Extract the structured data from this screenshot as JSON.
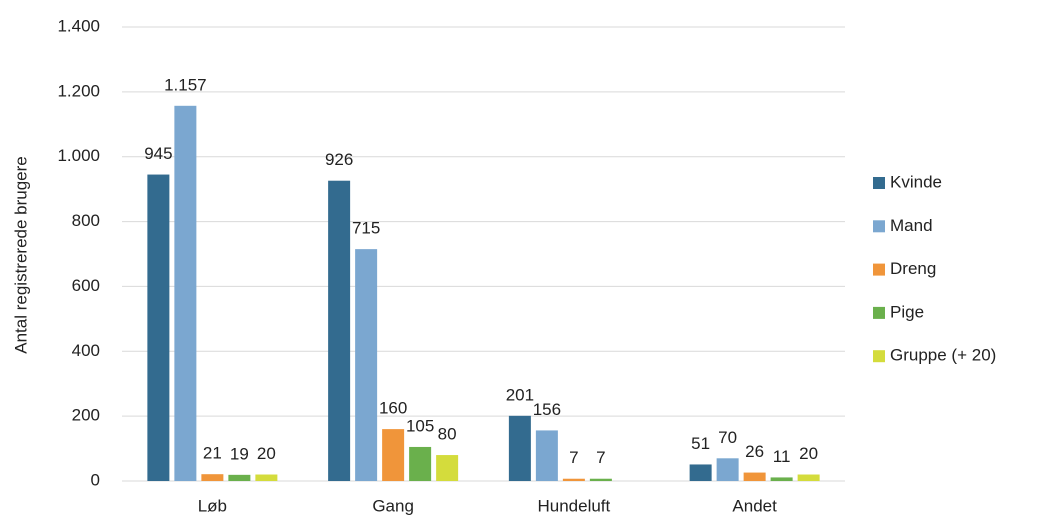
{
  "chart_data": {
    "type": "bar",
    "y_label": "Antal registrerede brugere",
    "categories": [
      "Løb",
      "Gang",
      "Hundeluft",
      "Andet"
    ],
    "series": [
      {
        "name": "Kvinde",
        "color": "#336b8f",
        "values": [
          945,
          926,
          201,
          51
        ]
      },
      {
        "name": "Mand",
        "color": "#7ba7d0",
        "values": [
          1157,
          715,
          156,
          70
        ],
        "value_labels": [
          "1.157",
          "715",
          "156",
          "70"
        ]
      },
      {
        "name": "Dreng",
        "color": "#f0953a",
        "values": [
          21,
          160,
          7,
          26
        ]
      },
      {
        "name": "Pige",
        "color": "#6ab04c",
        "values": [
          19,
          105,
          7,
          11
        ]
      },
      {
        "name": "Gruppe (+ 20)",
        "color": "#d4dc3c",
        "values": [
          20,
          80,
          null,
          20
        ]
      }
    ],
    "ylim": [
      0,
      1400
    ],
    "yticks": [
      0,
      200,
      400,
      600,
      800,
      {
        "value": 1000,
        "label": "1.000"
      },
      {
        "value": 1200,
        "label": "1.200"
      },
      {
        "value": 1400,
        "label": "1.400"
      }
    ],
    "grid": true,
    "legend": "right"
  }
}
